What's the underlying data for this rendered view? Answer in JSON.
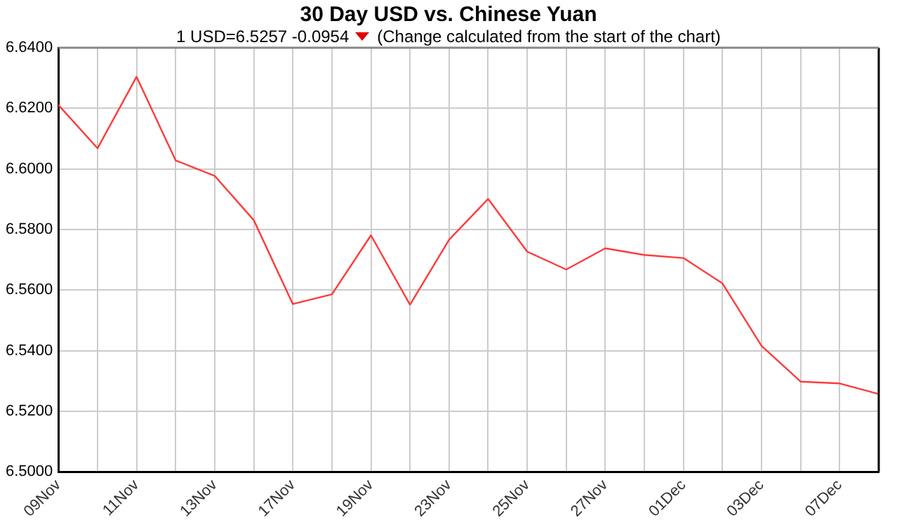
{
  "chart_data": {
    "type": "line",
    "title": "30 Day USD vs. Chinese Yuan",
    "subtitle": "1 USD=6.5257  -0.0954",
    "annotations": [
      "(Change calculated from the start of the chart)"
    ],
    "categories": [
      "09Nov",
      null,
      "11Nov",
      null,
      "13Nov",
      null,
      "17Nov",
      null,
      "19Nov",
      null,
      "23Nov",
      null,
      "25Nov",
      null,
      "27Nov",
      null,
      "01Dec",
      null,
      "03Dec",
      null,
      "07Dec",
      null
    ],
    "series": [
      {
        "color": "#ff3b3b",
        "values": [
          6.6211,
          6.6068,
          6.6304,
          6.6028,
          6.5977,
          6.5831,
          6.5554,
          6.5586,
          6.5781,
          6.5552,
          6.5766,
          6.5901,
          6.5727,
          6.5668,
          6.5738,
          6.5716,
          6.5706,
          6.5622,
          6.5416,
          6.5298,
          6.5292,
          6.5257
        ]
      }
    ],
    "ylim": [
      6.5,
      6.64
    ],
    "yticks": [
      {
        "value": 6.5,
        "label": "6.5000"
      },
      {
        "value": 6.52,
        "label": "6.5200"
      },
      {
        "value": 6.54,
        "label": "6.5400"
      },
      {
        "value": 6.56,
        "label": "6.5600"
      },
      {
        "value": 6.58,
        "label": "6.5800"
      },
      {
        "value": 6.6,
        "label": "6.6000"
      },
      {
        "value": 6.62,
        "label": "6.6200"
      },
      {
        "value": 6.64,
        "label": "6.6400"
      }
    ],
    "grid": true,
    "legend": false,
    "marker": "none",
    "line_style": "solid"
  }
}
